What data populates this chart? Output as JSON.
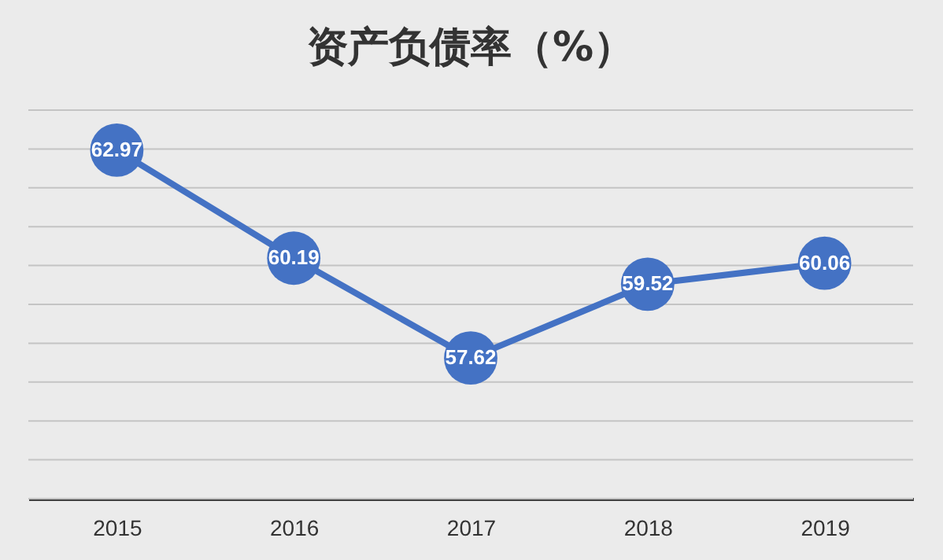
{
  "chart_data": {
    "type": "line",
    "title": "资产负债率（%）",
    "categories": [
      "2015",
      "2016",
      "2017",
      "2018",
      "2019"
    ],
    "series": [
      {
        "color": "#4472c4",
        "values": [
          62.97,
          60.19,
          57.62,
          59.52,
          60.06
        ]
      }
    ],
    "ylim": [
      54,
      64
    ],
    "yticks": [
      {
        "value": 54,
        "label": null
      },
      {
        "value": 55,
        "label": null
      },
      {
        "value": 56,
        "label": null
      },
      {
        "value": 57,
        "label": null
      },
      {
        "value": 58,
        "label": null
      },
      {
        "value": 59,
        "label": null
      },
      {
        "value": 60,
        "label": null
      },
      {
        "value": 61,
        "label": null
      },
      {
        "value": 62,
        "label": null
      },
      {
        "value": 63,
        "label": null
      },
      {
        "value": 64,
        "label": null
      }
    ],
    "grid": "y",
    "marker": "circle",
    "data_labels": true,
    "tick_labels": "x"
  }
}
